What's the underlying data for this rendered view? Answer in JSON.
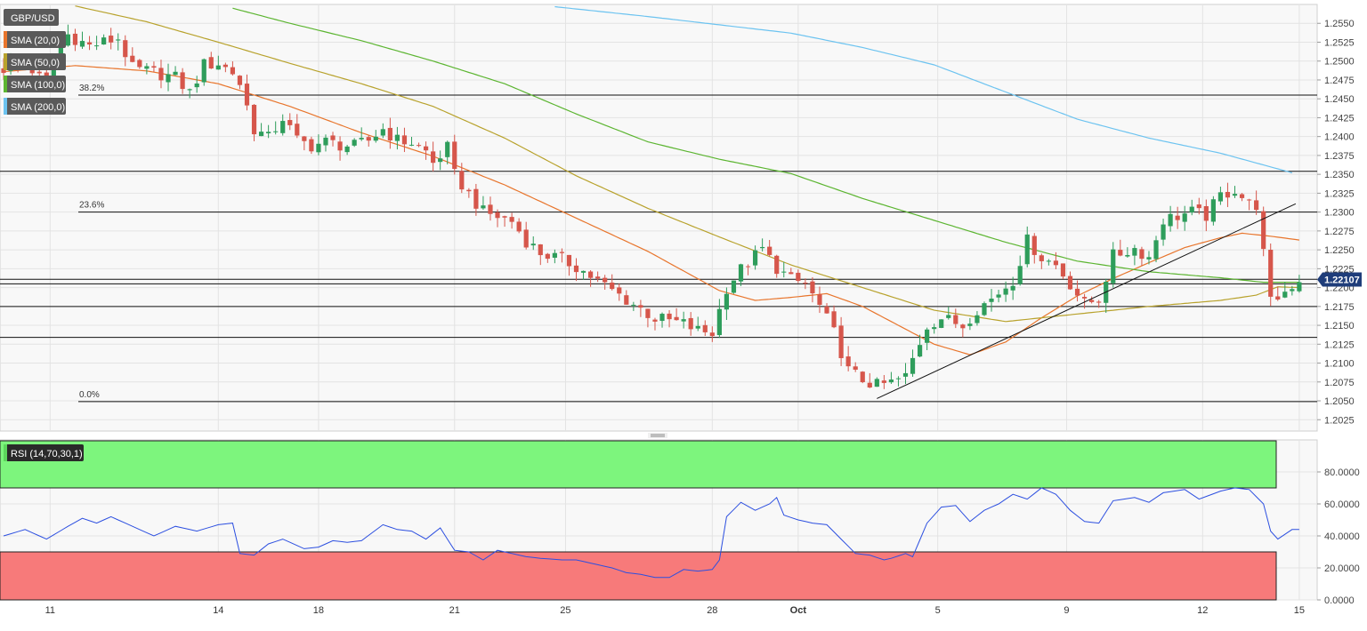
{
  "symbol": "GBP/USD",
  "indicators": [
    {
      "label": "SMA (20,0)",
      "color": "#e8752c"
    },
    {
      "label": "SMA (50,0)",
      "color": "#b8a22c"
    },
    {
      "label": "SMA (100,0)",
      "color": "#5cb531"
    },
    {
      "label": "SMA (200,0)",
      "color": "#6cc3f0"
    }
  ],
  "last_price": "1.22107",
  "rsi_label": "RSI (14,70,30,1)",
  "fib_levels": [
    {
      "label": "38.2%",
      "value": 1.2455
    },
    {
      "label": "23.6%",
      "value": 1.23
    },
    {
      "label": "0.0%",
      "value": 1.2049
    }
  ],
  "chart_data": {
    "type": "candlestick",
    "price_axis": {
      "ylim": [
        1.201,
        1.2575
      ],
      "ticks": [
        "1.2025",
        "1.2050",
        "1.2075",
        "1.2100",
        "1.2125",
        "1.2150",
        "1.2175",
        "1.2200",
        "1.2225",
        "1.2250",
        "1.2275",
        "1.2300",
        "1.2325",
        "1.2350",
        "1.2375",
        "1.2400",
        "1.2425",
        "1.2450",
        "1.2475",
        "1.2500",
        "1.2525",
        "1.2550"
      ]
    },
    "rsi_axis": {
      "ylim": [
        0,
        100
      ],
      "ticks": [
        "0.0000",
        "20.0000",
        "40.0000",
        "60.0000",
        "80.0000"
      ],
      "overbought": 70,
      "oversold": 30
    },
    "x_ticks": [
      {
        "label": "11",
        "bar": 6.5
      },
      {
        "label": "14",
        "bar": 30
      },
      {
        "label": "18",
        "bar": 44
      },
      {
        "label": "21",
        "bar": 63
      },
      {
        "label": "25",
        "bar": 78.5
      },
      {
        "label": "28",
        "bar": 99
      },
      {
        "label": "Oct",
        "bar": 111,
        "bold": true
      },
      {
        "label": "5",
        "bar": 130.5
      },
      {
        "label": "9",
        "bar": 148.5
      },
      {
        "label": "12",
        "bar": 167.5
      },
      {
        "label": "15",
        "bar": 181
      }
    ],
    "horizontal_levels": [
      1.2354,
      1.23,
      1.2211,
      1.2205,
      1.2175,
      1.2134,
      1.2049,
      1.2455
    ],
    "trendline": {
      "start": {
        "bar": 122,
        "price": 1.2053
      },
      "end": {
        "bar": 180.5,
        "price": 1.2311
      }
    },
    "close_path": [
      [
        0,
        1.249
      ],
      [
        3,
        1.2498
      ],
      [
        6,
        1.2468
      ],
      [
        7,
        1.25
      ],
      [
        9,
        1.2535
      ],
      [
        12,
        1.252
      ],
      [
        14,
        1.2525
      ],
      [
        16,
        1.253
      ],
      [
        18,
        1.249
      ],
      [
        21,
        1.2485
      ],
      [
        24,
        1.2478
      ],
      [
        26,
        1.2458
      ],
      [
        28,
        1.2495
      ],
      [
        30,
        1.2497
      ],
      [
        32,
        1.2485
      ],
      [
        33,
        1.247
      ],
      [
        35,
        1.241
      ],
      [
        37,
        1.2398
      ],
      [
        39,
        1.2425
      ],
      [
        41,
        1.2395
      ],
      [
        43,
        1.2388
      ],
      [
        45,
        1.2393
      ],
      [
        47,
        1.2389
      ],
      [
        49,
        1.2387
      ],
      [
        51,
        1.2395
      ],
      [
        53,
        1.241
      ],
      [
        55,
        1.2395
      ],
      [
        57,
        1.2392
      ],
      [
        59,
        1.238
      ],
      [
        60,
        1.2365
      ],
      [
        62,
        1.2385
      ],
      [
        63,
        1.2349
      ],
      [
        65,
        1.2324
      ],
      [
        67,
        1.23
      ],
      [
        69,
        1.2294
      ],
      [
        71,
        1.2288
      ],
      [
        73,
        1.2262
      ],
      [
        75,
        1.2246
      ],
      [
        78,
        1.2237
      ],
      [
        80,
        1.2228
      ],
      [
        82,
        1.2215
      ],
      [
        85,
        1.2196
      ],
      [
        87,
        1.2184
      ],
      [
        89,
        1.2172
      ],
      [
        91,
        1.2159
      ],
      [
        93,
        1.2156
      ],
      [
        95,
        1.2152
      ],
      [
        97,
        1.2143
      ],
      [
        99,
        1.214
      ],
      [
        101,
        1.22
      ],
      [
        103,
        1.2224
      ],
      [
        106,
        1.2251
      ],
      [
        108,
        1.2226
      ],
      [
        110,
        1.221
      ],
      [
        112,
        1.2205
      ],
      [
        114,
        1.2175
      ],
      [
        116,
        1.214
      ],
      [
        118,
        1.209
      ],
      [
        120,
        1.2078
      ],
      [
        122,
        1.207
      ],
      [
        124,
        1.2074
      ],
      [
        126,
        1.2082
      ],
      [
        127,
        1.2105
      ],
      [
        129,
        1.215
      ],
      [
        131,
        1.216
      ],
      [
        134,
        1.215
      ],
      [
        136,
        1.2172
      ],
      [
        138,
        1.2185
      ],
      [
        141,
        1.221
      ],
      [
        143,
        1.2262
      ],
      [
        145,
        1.224
      ],
      [
        147,
        1.223
      ],
      [
        149,
        1.2205
      ],
      [
        151,
        1.2178
      ],
      [
        153,
        1.2185
      ],
      [
        155,
        1.2242
      ],
      [
        158,
        1.2252
      ],
      [
        160,
        1.224
      ],
      [
        162,
        1.229
      ],
      [
        164,
        1.2295
      ],
      [
        166,
        1.23
      ],
      [
        168,
        1.2295
      ],
      [
        170,
        1.2322
      ],
      [
        172,
        1.233
      ],
      [
        174,
        1.231
      ],
      [
        175,
        1.231
      ],
      [
        177,
        1.218
      ],
      [
        179,
        1.2195
      ],
      [
        181,
        1.2211
      ]
    ],
    "sma": [
      {
        "name": "SMA (20,0)",
        "color": "#e8752c",
        "points": [
          [
            0,
            1.2486
          ],
          [
            10,
            1.2494
          ],
          [
            20,
            1.2487
          ],
          [
            30,
            1.247
          ],
          [
            40,
            1.244
          ],
          [
            50,
            1.2405
          ],
          [
            60,
            1.2374
          ],
          [
            70,
            1.2336
          ],
          [
            80,
            1.2292
          ],
          [
            90,
            1.2248
          ],
          [
            100,
            1.2196
          ],
          [
            105,
            1.2183
          ],
          [
            110,
            1.2187
          ],
          [
            115,
            1.2192
          ],
          [
            120,
            1.2175
          ],
          [
            125,
            1.215
          ],
          [
            130,
            1.2125
          ],
          [
            135,
            1.2111
          ],
          [
            140,
            1.2128
          ],
          [
            145,
            1.216
          ],
          [
            150,
            1.2189
          ],
          [
            155,
            1.2212
          ],
          [
            160,
            1.2233
          ],
          [
            165,
            1.2253
          ],
          [
            170,
            1.2266
          ],
          [
            173,
            1.2272
          ],
          [
            177,
            1.2268
          ],
          [
            181,
            1.2263
          ]
        ]
      },
      {
        "name": "SMA (50,0)",
        "color": "#b8a22c",
        "points": [
          [
            10,
            1.2573
          ],
          [
            20,
            1.2552
          ],
          [
            30,
            1.2525
          ],
          [
            40,
            1.2497
          ],
          [
            50,
            1.247
          ],
          [
            60,
            1.244
          ],
          [
            70,
            1.2398
          ],
          [
            80,
            1.2348
          ],
          [
            90,
            1.2305
          ],
          [
            100,
            1.2267
          ],
          [
            110,
            1.223
          ],
          [
            120,
            1.22
          ],
          [
            130,
            1.217
          ],
          [
            140,
            1.2155
          ],
          [
            150,
            1.2165
          ],
          [
            160,
            1.2175
          ],
          [
            170,
            1.2183
          ],
          [
            175,
            1.219
          ],
          [
            178,
            1.2201
          ],
          [
            181,
            1.22
          ]
        ]
      },
      {
        "name": "SMA (100,0)",
        "color": "#5cb531",
        "points": [
          [
            32,
            1.257
          ],
          [
            40,
            1.255
          ],
          [
            50,
            1.2527
          ],
          [
            60,
            1.25
          ],
          [
            70,
            1.247
          ],
          [
            80,
            1.243
          ],
          [
            90,
            1.2393
          ],
          [
            100,
            1.237
          ],
          [
            110,
            1.2351
          ],
          [
            120,
            1.2318
          ],
          [
            130,
            1.2289
          ],
          [
            140,
            1.226
          ],
          [
            150,
            1.2235
          ],
          [
            160,
            1.2221
          ],
          [
            170,
            1.2213
          ],
          [
            176,
            1.2207
          ],
          [
            181,
            1.2207
          ]
        ]
      },
      {
        "name": "SMA (200,0)",
        "color": "#6cc3f0",
        "points": [
          [
            77,
            1.2572
          ],
          [
            90,
            1.2559
          ],
          [
            100,
            1.2548
          ],
          [
            110,
            1.2537
          ],
          [
            120,
            1.2518
          ],
          [
            130,
            1.2495
          ],
          [
            140,
            1.2459
          ],
          [
            150,
            1.2423
          ],
          [
            160,
            1.2398
          ],
          [
            170,
            1.2378
          ],
          [
            180,
            1.2352
          ]
        ]
      }
    ],
    "rsi_path": [
      [
        0,
        40
      ],
      [
        3,
        44
      ],
      [
        6,
        38
      ],
      [
        9,
        46
      ],
      [
        11,
        51
      ],
      [
        13,
        48
      ],
      [
        15,
        52
      ],
      [
        18,
        46
      ],
      [
        21,
        40
      ],
      [
        24,
        46
      ],
      [
        27,
        43
      ],
      [
        30,
        47
      ],
      [
        32,
        48
      ],
      [
        33,
        29
      ],
      [
        35,
        28
      ],
      [
        37,
        35
      ],
      [
        39,
        38
      ],
      [
        42,
        32
      ],
      [
        44,
        33
      ],
      [
        46,
        37
      ],
      [
        48,
        36
      ],
      [
        50,
        37
      ],
      [
        53,
        47
      ],
      [
        55,
        44
      ],
      [
        57,
        43
      ],
      [
        59,
        38
      ],
      [
        61,
        45
      ],
      [
        63,
        31
      ],
      [
        65,
        30
      ],
      [
        67,
        25
      ],
      [
        69,
        31
      ],
      [
        71,
        29
      ],
      [
        73,
        27
      ],
      [
        75,
        26
      ],
      [
        78,
        25
      ],
      [
        80,
        25
      ],
      [
        82,
        23
      ],
      [
        85,
        20
      ],
      [
        87,
        17
      ],
      [
        89,
        16
      ],
      [
        91,
        14
      ],
      [
        93,
        14
      ],
      [
        95,
        19
      ],
      [
        97,
        18
      ],
      [
        99,
        19
      ],
      [
        100,
        25
      ],
      [
        101,
        52
      ],
      [
        103,
        61
      ],
      [
        105,
        56
      ],
      [
        107,
        60
      ],
      [
        108,
        64
      ],
      [
        109,
        53
      ],
      [
        111,
        50
      ],
      [
        113,
        48
      ],
      [
        115,
        47
      ],
      [
        117,
        38
      ],
      [
        119,
        29
      ],
      [
        121,
        28
      ],
      [
        123,
        25
      ],
      [
        124,
        26
      ],
      [
        126,
        29
      ],
      [
        127,
        27
      ],
      [
        129,
        48
      ],
      [
        131,
        58
      ],
      [
        133,
        59
      ],
      [
        135,
        49
      ],
      [
        137,
        56
      ],
      [
        139,
        60
      ],
      [
        141,
        66
      ],
      [
        143,
        63
      ],
      [
        145,
        70
      ],
      [
        147,
        66
      ],
      [
        149,
        56
      ],
      [
        151,
        49
      ],
      [
        153,
        48
      ],
      [
        155,
        62
      ],
      [
        158,
        64
      ],
      [
        160,
        61
      ],
      [
        162,
        67
      ],
      [
        165,
        69
      ],
      [
        167,
        63
      ],
      [
        170,
        68
      ],
      [
        172,
        70
      ],
      [
        174,
        69
      ],
      [
        176,
        60
      ],
      [
        177,
        43
      ],
      [
        178,
        38
      ],
      [
        180,
        44
      ],
      [
        181,
        44
      ]
    ]
  }
}
